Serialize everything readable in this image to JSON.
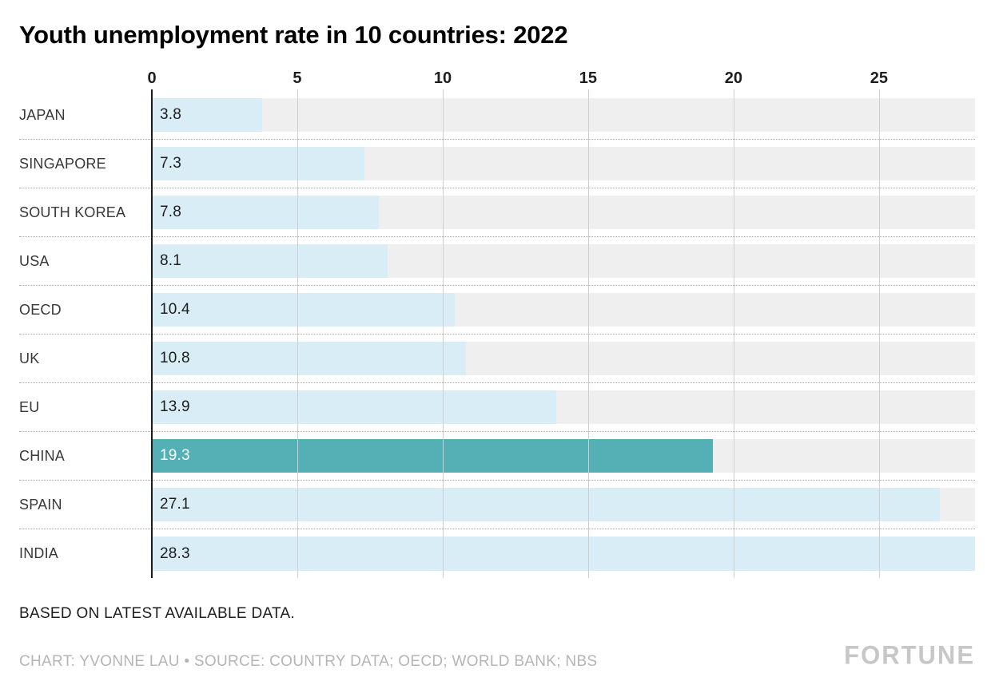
{
  "title": "Youth unemployment rate in 10 countries: 2022",
  "chart_data": {
    "type": "bar",
    "orientation": "horizontal",
    "title": "Youth unemployment rate in 10 countries: 2022",
    "categories": [
      "JAPAN",
      "SINGAPORE",
      "SOUTH KOREA",
      "USA",
      "OECD",
      "UK",
      "EU",
      "CHINA",
      "SPAIN",
      "INDIA"
    ],
    "values": [
      3.8,
      7.3,
      7.8,
      8.1,
      10.4,
      10.8,
      13.9,
      19.3,
      27.1,
      28.3
    ],
    "value_labels": [
      "3.8",
      "7.3",
      "7.8",
      "8.1",
      "10.4",
      "10.8",
      "13.9",
      "19.3",
      "27.1",
      "28.3"
    ],
    "highlight_category": "CHINA",
    "highlight_index": 7,
    "x_ticks": [
      0,
      5,
      10,
      15,
      20,
      25
    ],
    "xlim": [
      0,
      28.3
    ],
    "grid": true,
    "legend": "none",
    "colors": {
      "bar": "#d9edf7",
      "highlight_bar": "#54b0b4",
      "row_bg": "#efefef",
      "gridline": "#cfcfcf",
      "axis_line": "#1d1d1d",
      "value_label": "#1d1d1d",
      "highlight_value_label": "#ffffff"
    }
  },
  "footer": {
    "note": "BASED ON LATEST AVAILABLE DATA.",
    "credit": "CHART: YVONNE LAU • SOURCE: COUNTRY DATA; OECD; WORLD BANK; NBS",
    "brand": "FORTUNE"
  }
}
